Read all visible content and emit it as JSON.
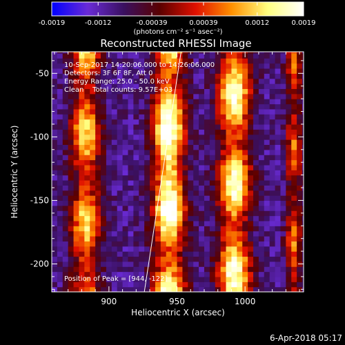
{
  "chart_data": {
    "type": "heatmap",
    "title": "Reconstructed RHESSI Image",
    "xlabel": "Heliocentric X (arcsec)",
    "ylabel": "Heliocentric Y (arcsec)",
    "xlim": [
      858,
      1043
    ],
    "ylim": [
      -222,
      -33
    ],
    "x_ticks": [
      900,
      950,
      1000
    ],
    "y_ticks": [
      -50,
      -100,
      -150,
      -200
    ],
    "colorbar": {
      "label": "(photons cm⁻² s⁻¹ asec⁻²)",
      "tick_labels": [
        "-0.0019",
        "-0.0012",
        "-0.00039",
        "0.00039",
        "0.0012",
        "0.0019"
      ],
      "range": [
        -0.0019,
        0.0019
      ],
      "colors": [
        "#0000ff",
        "#6a2bd6",
        "#3a1060",
        "#5a0000",
        "#e01000",
        "#ff9000",
        "#ffff80",
        "#ffffff"
      ]
    },
    "annotations": [
      "10-Sep-2017 14:20:06.000 to 14:26:06.000",
      "Detectors: 3F 6F 8F, Att 0",
      "Energy Range: 25.0 - 50.0 keV",
      "Clean    Total counts: 9.57E+03"
    ],
    "peak_label": "Position of Peak = [944, -122]",
    "peak": {
      "x": 944,
      "y": -122,
      "value": 0.0019
    },
    "bands": [
      {
        "x_center": 883,
        "width": 11,
        "peak": 0.0012
      },
      {
        "x_center": 944,
        "width": 12,
        "peak": 0.0019
      },
      {
        "x_center": 992,
        "width": 12,
        "peak": 0.0017
      },
      {
        "x_center": 1036,
        "width": 6,
        "peak": 0.0006
      }
    ],
    "limb_line": [
      [
        926,
        -222
      ],
      [
        953,
        -33
      ]
    ]
  },
  "footer": {
    "date": "6-Apr-2018 05:17"
  }
}
